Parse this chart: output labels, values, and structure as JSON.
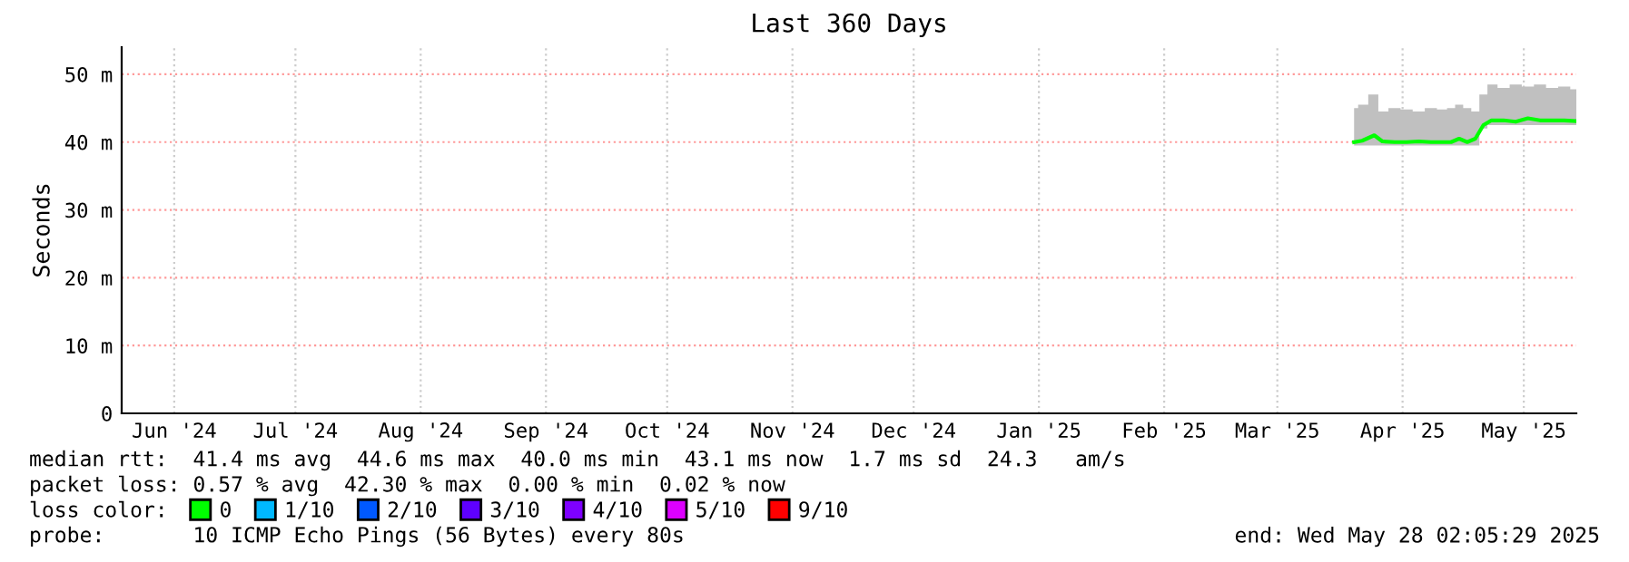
{
  "chart_data": {
    "type": "line",
    "title": "Last 360 Days",
    "ylabel": "Seconds",
    "xlim": [
      "2024-06-02",
      "2025-05-28"
    ],
    "xticks": [
      {
        "value": "2024-06-15",
        "label": "Jun '24"
      },
      {
        "value": "2024-07-15",
        "label": "Jul '24"
      },
      {
        "value": "2024-08-15",
        "label": "Aug '24"
      },
      {
        "value": "2024-09-15",
        "label": "Sep '24"
      },
      {
        "value": "2024-10-15",
        "label": "Oct '24"
      },
      {
        "value": "2024-11-15",
        "label": "Nov '24"
      },
      {
        "value": "2024-12-15",
        "label": "Dec '24"
      },
      {
        "value": "2025-01-15",
        "label": "Jan '25"
      },
      {
        "value": "2025-02-15",
        "label": "Feb '25"
      },
      {
        "value": "2025-03-15",
        "label": "Mar '25"
      },
      {
        "value": "2025-04-15",
        "label": "Apr '25"
      },
      {
        "value": "2025-05-15",
        "label": "May '25"
      }
    ],
    "ylim": [
      0,
      54
    ],
    "yticks": [
      0,
      {
        "value": 10,
        "label": "10 m"
      },
      {
        "value": 20,
        "label": "20 m"
      },
      {
        "value": 30,
        "label": "30 m"
      },
      {
        "value": 40,
        "label": "40 m"
      },
      {
        "value": 50,
        "label": "50 m"
      }
    ],
    "grid": true,
    "legend": "bottom",
    "series": [
      {
        "name": "0",
        "color": "#00ff00",
        "x": [
          "2025-04-03",
          "2025-04-05",
          "2025-04-08",
          "2025-04-10",
          "2025-04-13",
          "2025-04-16",
          "2025-04-19",
          "2025-04-22",
          "2025-04-25",
          "2025-04-27",
          "2025-04-29",
          "2025-05-01",
          "2025-05-03",
          "2025-05-05",
          "2025-05-07",
          "2025-05-10",
          "2025-05-13",
          "2025-05-16",
          "2025-05-19",
          "2025-05-22",
          "2025-05-25",
          "2025-05-28"
        ],
        "values": [
          40.0,
          40.2,
          41.0,
          40.1,
          40.0,
          40.0,
          40.1,
          40.0,
          40.0,
          40.0,
          40.5,
          40.0,
          40.5,
          42.5,
          43.2,
          43.2,
          43.0,
          43.5,
          43.2,
          43.2,
          43.2,
          43.1
        ],
        "lower": [
          39.5,
          39.5,
          39.5,
          39.5,
          39.5,
          39.5,
          39.5,
          39.5,
          39.5,
          39.5,
          39.5,
          39.5,
          39.5,
          42.0,
          42.5,
          42.5,
          42.5,
          42.5,
          42.5,
          42.5,
          42.5,
          42.5
        ],
        "upper": [
          45.0,
          45.5,
          47.0,
          44.5,
          45.0,
          44.8,
          44.5,
          45.0,
          44.8,
          45.0,
          45.5,
          45.0,
          44.5,
          47.0,
          48.5,
          48.0,
          48.5,
          48.2,
          48.5,
          48.0,
          48.2,
          47.8
        ]
      },
      {
        "name": "1/10",
        "color": "#00b8ff"
      },
      {
        "name": "2/10",
        "color": "#0059ff"
      },
      {
        "name": "3/10",
        "color": "#5e00ff"
      },
      {
        "name": "4/10",
        "color": "#7e00ff"
      },
      {
        "name": "5/10",
        "color": "#dd00ff"
      },
      {
        "name": "9/10",
        "color": "#ff0000"
      }
    ],
    "annotations": [
      "median rtt:  41.4 ms avg  44.6 ms max  40.0 ms min  43.1 ms now  1.7 ms sd  24.3   am/s",
      "packet loss: 0.57 % avg  42.30 % max  0.00 % min  0.02 % now",
      "loss color:",
      "probe:       10 ICMP Echo Pings (56 Bytes) every 80s",
      "end: Wed May 28 02:05:29 2025"
    ]
  }
}
